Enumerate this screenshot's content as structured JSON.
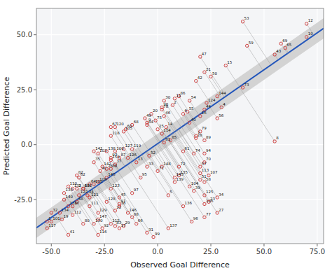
{
  "chart_data": {
    "type": "scatter",
    "xlabel": "Observed Goal Difference",
    "ylabel": "Predicted Goal Difference",
    "xlim": [
      -57,
      78
    ],
    "ylim": [
      -45,
      62
    ],
    "xticks": [
      {
        "value": -50,
        "label": "-50.0"
      },
      {
        "value": -25,
        "label": "-25.0"
      },
      {
        "value": 0,
        "label": "0.0"
      },
      {
        "value": 25,
        "label": "25.0"
      },
      {
        "value": 50,
        "label": "50.0"
      },
      {
        "value": 75,
        "label": "75.0"
      }
    ],
    "yticks": [
      {
        "value": -25,
        "label": "-25.0"
      },
      {
        "value": 0,
        "label": "0.0"
      },
      {
        "value": 25,
        "label": "25.0"
      },
      {
        "value": 50,
        "label": "50.0"
      }
    ],
    "grid": true,
    "series": [
      {
        "type": "band",
        "color": "#cccccc",
        "x": [
          -57,
          -42,
          -27,
          -12,
          3,
          18,
          33,
          48,
          63,
          78
        ],
        "lower": [
          -42.362,
          -32.254,
          -22.155,
          -12.065,
          -1.985,
          8.085,
          18.146,
          28.198,
          38.241,
          48.275
        ],
        "upper": [
          -33.246,
          -23.194,
          -13.133,
          -3.063,
          7.017,
          17.107,
          27.206,
          37.314,
          47.431,
          57.557
        ]
      },
      {
        "type": "line",
        "color": "#2255bb",
        "x": [
          -57,
          78
        ],
        "values": [
          -37.804,
          52.916
        ]
      },
      {
        "type": "scatter",
        "color": "#cc3333",
        "marker": "circle",
        "x": [
          -52,
          7,
          -38,
          30,
          5,
          12,
          18,
          55,
          -5,
          70,
          8,
          70,
          -10,
          4,
          32,
          20,
          -18,
          -40,
          -45,
          -3,
          22,
          -20,
          24,
          -33,
          0,
          -24,
          28,
          18,
          -16,
          3,
          -5,
          -50,
          -5,
          28,
          -30,
          -18,
          -20,
          -22,
          17,
          15,
          -42,
          18,
          55,
          22,
          -18,
          3,
          20,
          -38,
          -6,
          25,
          20,
          -4,
          40,
          15,
          14,
          28,
          20,
          22,
          42,
          -15,
          12,
          -37,
          -35,
          -32,
          60,
          -10,
          -22,
          -12,
          58,
          22,
          0,
          10,
          40,
          17,
          -1,
          22,
          2,
          20,
          -35,
          3,
          -38,
          -20,
          -5,
          6,
          10,
          -18,
          -12,
          22,
          -27,
          -18,
          -26,
          -22,
          22,
          -8,
          16,
          -12,
          2,
          -2,
          -20,
          -50,
          -35,
          -28,
          15,
          -16,
          22,
          24,
          -30,
          -28,
          -42,
          -32,
          -40,
          20,
          2,
          -22,
          -28,
          -52,
          -22,
          -12,
          -20,
          -32,
          -37,
          -22,
          23,
          22,
          -14,
          -16,
          -24,
          -28,
          -30,
          -42,
          -40,
          -44,
          -46,
          10,
          12,
          5,
          -24,
          8,
          -44,
          -30,
          -26,
          8,
          28,
          -24,
          -14,
          -28,
          2,
          -22
        ],
        "values": [
          -35,
          18,
          -20,
          17,
          -23,
          14,
          4,
          1.5,
          10,
          49,
          21,
          55,
          -8,
          8,
          36,
          13,
          -38,
          -28,
          -34,
          14,
          33,
          -30,
          -26,
          -23,
          7,
          -11,
          -31,
          3,
          -37,
          20,
          -40,
          -31,
          -10,
          -24,
          -8,
          -28,
          -9,
          -11,
          -21,
          10,
          -41,
          29,
          41,
          16,
          -24,
          13,
          40,
          -26,
          12,
          31,
          -16,
          -5,
          56,
          20,
          15,
          12,
          -10,
          -17,
          45,
          7,
          -3,
          -15,
          -20,
          -18,
          44,
          -36,
          8,
          9,
          46,
          -8,
          -12,
          -10,
          26,
          -4,
          11,
          -33,
          16,
          6,
          -36,
          1,
          -14,
          -37,
          9,
          2,
          22,
          -6,
          -33,
          2,
          -12,
          -27,
          -38,
          -6,
          -4,
          -15,
          -35,
          -22,
          17,
          -42,
          -3,
          -35,
          -20,
          -4,
          -19,
          6,
          -27,
          -14,
          -18,
          -17,
          -19,
          -28,
          -32,
          -13,
          5,
          -36,
          -41,
          -38,
          4,
          -2,
          8,
          -24,
          -23,
          -20,
          19,
          -23,
          -6,
          -2,
          -26,
          -31,
          -36,
          -28,
          -20,
          -22,
          -31,
          -14,
          -28,
          -38,
          -3,
          -17,
          -25,
          -3,
          -10,
          -15,
          22,
          -15,
          -31,
          -34,
          -10,
          -7
        ],
        "point_labels": [
          "1",
          "2",
          "3",
          "4",
          "5",
          "6",
          "7",
          "8",
          "9",
          "10",
          "11",
          "12",
          "13",
          "14",
          "15",
          "16",
          "17",
          "18",
          "19",
          "20",
          "21",
          "22",
          "23",
          "24",
          "25",
          "26",
          "27",
          "28",
          "29",
          "30",
          "31",
          "32",
          "33",
          "34",
          "35",
          "36",
          "37",
          "38",
          "39",
          "40",
          "41",
          "42",
          "43",
          "44",
          "45",
          "46",
          "47",
          "48",
          "49",
          "50",
          "51",
          "52",
          "53",
          "54",
          "55",
          "56",
          "57",
          "58",
          "59",
          "60",
          "61",
          "62",
          "63",
          "64",
          "65",
          "66",
          "67",
          "68",
          "69",
          "70",
          "71",
          "72",
          "73",
          "74",
          "75",
          "77",
          "78",
          "79",
          "80",
          "81",
          "82",
          "83",
          "84",
          "85",
          "86",
          "87",
          "88",
          "89",
          "90",
          "91",
          "92",
          "93",
          "94",
          "95",
          "96",
          "97",
          "98",
          "99",
          "100",
          "101",
          "102",
          "103",
          "104",
          "105",
          "106",
          "107",
          "108",
          "109",
          "110",
          "111",
          "112",
          "113",
          "114",
          "115",
          "116",
          "117",
          "118",
          "119",
          "120",
          "121",
          "122",
          "123",
          "124",
          "125",
          "126",
          "127",
          "128",
          "129",
          "130",
          "131",
          "132",
          "133",
          "134",
          "135",
          "136",
          "137",
          "138",
          "139",
          "140",
          "141",
          "142",
          "143",
          "144",
          "145",
          "146",
          "147",
          "148",
          "150"
        ]
      }
    ]
  }
}
